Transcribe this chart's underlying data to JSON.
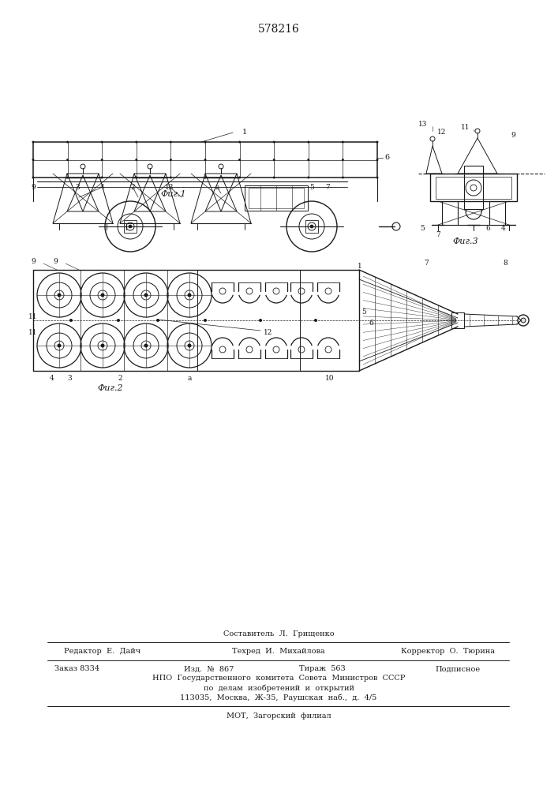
{
  "patent_number": "578216",
  "bg": "#ffffff",
  "lc": "#1a1a1a",
  "fig1_caption": "Фиг.1",
  "fig2_caption": "Фиг.2",
  "fig3_caption": "Фиг.3",
  "footer": {
    "sostavitel": "Составитель  Л.  Грищенко",
    "redaktor": "Редактор  Е.  Дайч",
    "tehred": "Техред  И.  Михайлова",
    "korrektor": "Корректор  О.  Тюрина",
    "zakaz": "Заказ 8334",
    "izd": "Изд.  №  867",
    "tirazh": "Тираж  563",
    "podpisnoe": "Подписное",
    "npo1": "НПО  Государственного  комитета  Совета  Министров  СССР",
    "npo2": "по  делам  изобретений  и  открытий",
    "npo3": "113035,  Москва,  Ж-35,  Раушская  наб.,  д.  4/5",
    "mot": "МОТ,  Загорский  филиал"
  }
}
